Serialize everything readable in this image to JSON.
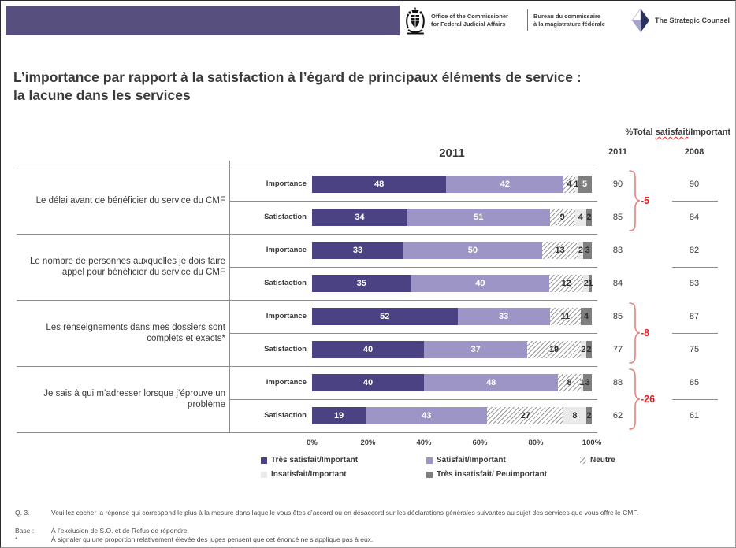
{
  "header": {
    "org_en": [
      "Office of the Commissioner",
      "for Federal Judicial Affairs"
    ],
    "org_fr": [
      "Bureau du commissaire",
      "à la magistrature fédérale"
    ],
    "brand": "The Strategic Counsel"
  },
  "title": {
    "line1": "L’importance par rapport à la satisfaction à l’égard de principaux éléments de service :",
    "line2": "la lacune dans les services"
  },
  "chart_data": {
    "type": "bar",
    "variant": "horizontal-100pct-stacked",
    "year_heading": "2011",
    "totals_header": {
      "pre": "%Total ",
      "misspelled_word": "satisfait",
      "post": "/Important"
    },
    "totals_columns": [
      "2011",
      "2008"
    ],
    "row_labels": [
      "Importance",
      "Satisfaction"
    ],
    "axis_ticks": [
      "0%",
      "20%",
      "40%",
      "60%",
      "80%",
      "100%"
    ],
    "xlim": [
      0,
      100
    ],
    "legend": [
      {
        "label": "Très satisfait/Important",
        "color": "#4B4284",
        "pattern": "solid"
      },
      {
        "label": "Satisfait/Important",
        "color": "#9C95C5",
        "pattern": "solid"
      },
      {
        "label": "Neutre",
        "color": "hatch",
        "pattern": "diagonal-hatch"
      },
      {
        "label": "Insatisfait/Important",
        "color": "#EAEAEA",
        "pattern": "solid"
      },
      {
        "label": "Très insatisfait/ Peuimportant",
        "color": "#7F7F7F",
        "pattern": "solid"
      }
    ],
    "groups": [
      {
        "category": "Le délai avant de bénéficier du service du CMF",
        "importance": {
          "values": [
            48,
            42,
            4,
            1,
            5
          ],
          "total_2011": "90",
          "total_2008": "90"
        },
        "satisfaction": {
          "values": [
            34,
            51,
            9,
            4,
            2
          ],
          "total_2011": "85",
          "total_2008": "84"
        },
        "gap": "-5"
      },
      {
        "category": "Le nombre de personnes auxquelles je dois faire appel pour bénéficier du service du CMF",
        "importance": {
          "values": [
            33,
            50,
            13,
            2,
            3
          ],
          "total_2011": "83",
          "total_2008": "82"
        },
        "satisfaction": {
          "values": [
            35,
            49,
            12,
            2,
            1
          ],
          "total_2011": "84",
          "total_2008": "83"
        },
        "gap": null
      },
      {
        "category": "Les renseignements dans mes dossiers sont complets et exacts*",
        "importance": {
          "values": [
            52,
            33,
            11,
            0,
            4
          ],
          "total_2011": "85",
          "total_2008": "87"
        },
        "satisfaction": {
          "values": [
            40,
            37,
            19,
            2,
            2
          ],
          "total_2011": "77",
          "total_2008": "75"
        },
        "gap": "-8"
      },
      {
        "category": "Je sais à qui m’adresser lorsque j’éprouve un problème",
        "importance": {
          "values": [
            40,
            48,
            8,
            1,
            3
          ],
          "total_2011": "88",
          "total_2008": "85"
        },
        "satisfaction": {
          "values": [
            19,
            43,
            27,
            8,
            2
          ],
          "total_2011": "62",
          "total_2008": "61"
        },
        "gap": "-26"
      }
    ]
  },
  "footnotes": [
    {
      "label": "Q. 3.",
      "text": "Veuillez cocher la réponse qui correspond le plus à la mesure dans laquelle vous êtes d’accord ou en désaccord sur les déclarations générales suivantes au sujet des services que vous offre le CMF."
    },
    {
      "label": "Base :",
      "text": "À l’exclusion de S.O. et de Refus de répondre."
    },
    {
      "label": "*",
      "text": "À signaler qu’une proportion relativement élevée des juges pensent que cet énoncé ne s’applique pas à eux."
    }
  ],
  "colors": {
    "banner": "#57507F",
    "gap_red": "#ED1C24",
    "brace": "#E8827E",
    "grid_line": "#8C8C8C"
  }
}
